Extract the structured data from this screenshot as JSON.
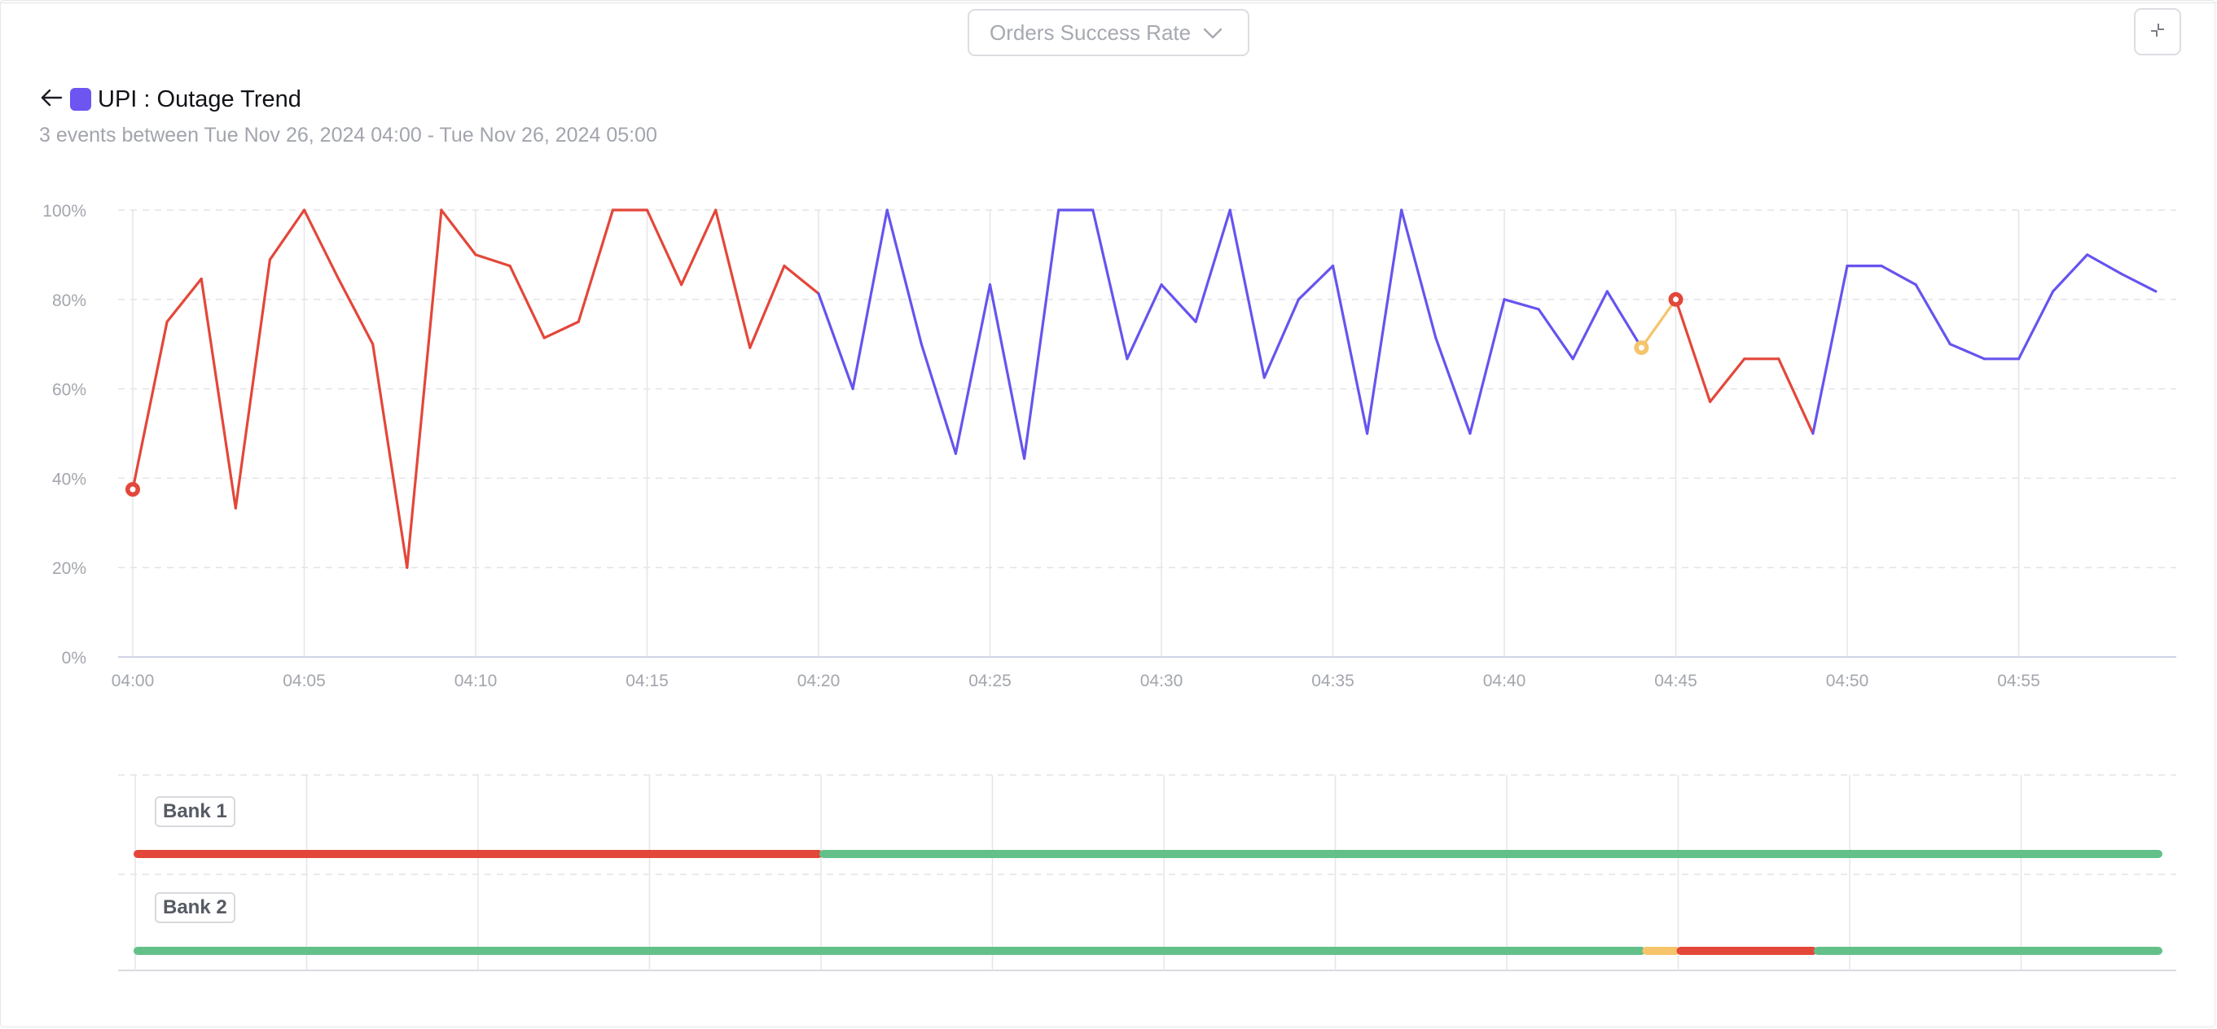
{
  "metric_selector": {
    "label": "Orders Success Rate"
  },
  "header": {
    "title": "UPI : Outage Trend",
    "subtitle": "3 events between Tue Nov 26, 2024 04:00 - Tue Nov 26, 2024 05:00"
  },
  "colors": {
    "outage": "#e3473a",
    "healthy": "#6654ee",
    "degraded": "#f6c46a",
    "bank_ok": "#63c089"
  },
  "chart_data": {
    "type": "line",
    "title": "",
    "xlabel": "",
    "ylabel": "",
    "ylim": [
      0,
      100
    ],
    "y_ticks": [
      "0%",
      "20%",
      "40%",
      "60%",
      "80%",
      "100%"
    ],
    "x_ticks": [
      "04:00",
      "04:05",
      "04:10",
      "04:15",
      "04:20",
      "04:25",
      "04:30",
      "04:35",
      "04:40",
      "04:45",
      "04:50",
      "04:55"
    ],
    "grid": true,
    "x": [
      "04:00",
      "04:01",
      "04:02",
      "04:03",
      "04:04",
      "04:05",
      "04:06",
      "04:07",
      "04:08",
      "04:09",
      "04:10",
      "04:11",
      "04:12",
      "04:13",
      "04:14",
      "04:15",
      "04:16",
      "04:17",
      "04:18",
      "04:19",
      "04:20",
      "04:21",
      "04:22",
      "04:23",
      "04:24",
      "04:25",
      "04:26",
      "04:27",
      "04:28",
      "04:29",
      "04:30",
      "04:31",
      "04:32",
      "04:33",
      "04:34",
      "04:35",
      "04:36",
      "04:37",
      "04:38",
      "04:39",
      "04:40",
      "04:41",
      "04:42",
      "04:43",
      "04:44",
      "04:45",
      "04:46",
      "04:47",
      "04:48",
      "04:49",
      "04:50",
      "04:51",
      "04:52",
      "04:53",
      "04:54",
      "04:55",
      "04:56",
      "04:57",
      "04:58",
      "04:59"
    ],
    "values": [
      37.5,
      75,
      84.6,
      33.3,
      88.9,
      100,
      84.6,
      70,
      20,
      100,
      90,
      87.5,
      71.4,
      75,
      100,
      100,
      83.3,
      100,
      69.2,
      87.5,
      81.3,
      60,
      100,
      70,
      45.5,
      83.3,
      44.4,
      100,
      100,
      66.7,
      83.3,
      75,
      100,
      62.5,
      80,
      87.5,
      50,
      100,
      71.4,
      50,
      80,
      77.8,
      66.7,
      81.8,
      69.2,
      80,
      57.1,
      66.7,
      66.7,
      50,
      87.5,
      87.5,
      83.3,
      70,
      66.7,
      66.7,
      81.8,
      90,
      85.7,
      81.8
    ],
    "segment_status": [
      "outage",
      "outage",
      "outage",
      "outage",
      "outage",
      "outage",
      "outage",
      "outage",
      "outage",
      "outage",
      "outage",
      "outage",
      "outage",
      "outage",
      "outage",
      "outage",
      "outage",
      "outage",
      "outage",
      "outage",
      "healthy",
      "healthy",
      "healthy",
      "healthy",
      "healthy",
      "healthy",
      "healthy",
      "healthy",
      "healthy",
      "healthy",
      "healthy",
      "healthy",
      "healthy",
      "healthy",
      "healthy",
      "healthy",
      "healthy",
      "healthy",
      "healthy",
      "healthy",
      "healthy",
      "healthy",
      "healthy",
      "healthy",
      "degraded",
      "outage",
      "outage",
      "outage",
      "outage",
      "healthy",
      "healthy",
      "healthy",
      "healthy",
      "healthy",
      "healthy",
      "healthy",
      "healthy",
      "healthy",
      "healthy"
    ],
    "event_markers": [
      {
        "x": "04:00",
        "y": 37.5,
        "status": "outage"
      },
      {
        "x": "04:44",
        "y": 69.2,
        "status": "degraded"
      },
      {
        "x": "04:45",
        "y": 80,
        "status": "outage"
      }
    ],
    "lanes": [
      {
        "name": "Bank 1",
        "segments": [
          {
            "start": "04:00",
            "end": "04:20",
            "status": "outage"
          },
          {
            "start": "04:20",
            "end": "04:59",
            "status": "bank_ok"
          }
        ]
      },
      {
        "name": "Bank 2",
        "segments": [
          {
            "start": "04:00",
            "end": "04:44",
            "status": "bank_ok"
          },
          {
            "start": "04:44",
            "end": "04:45",
            "status": "degraded"
          },
          {
            "start": "04:45",
            "end": "04:49",
            "status": "outage"
          },
          {
            "start": "04:49",
            "end": "04:59",
            "status": "bank_ok"
          }
        ]
      }
    ]
  }
}
